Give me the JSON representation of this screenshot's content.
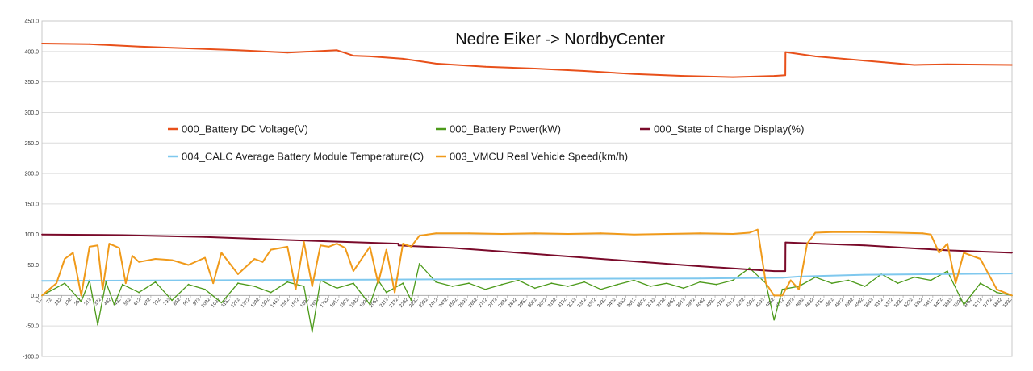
{
  "chart_data": {
    "type": "line",
    "title": "Nedre Eiker -> NordbyCenter",
    "xlabel": "",
    "ylabel": "",
    "ylim": [
      -100,
      450
    ],
    "y_ticks": [
      "-100.0",
      "-50.0",
      "0.0",
      "50.0",
      "100.0",
      "150.0",
      "200.0",
      "250.0",
      "300.0",
      "350.0",
      "400.0",
      "450.0"
    ],
    "x_range": [
      12,
      5892
    ],
    "x_ticks": [
      "12",
      "72",
      "132",
      "192",
      "252",
      "312",
      "372",
      "432",
      "492",
      "552",
      "612",
      "672",
      "732",
      "792",
      "852",
      "912",
      "972",
      "1032",
      "1092",
      "1152",
      "1212",
      "1272",
      "1332",
      "1392",
      "1452",
      "1512",
      "1572",
      "1632",
      "1692",
      "1752",
      "1812",
      "1872",
      "1932",
      "1992",
      "2052",
      "2112",
      "2172",
      "2232",
      "2292",
      "2352",
      "2412",
      "2472",
      "2532",
      "2592",
      "2652",
      "2712",
      "2772",
      "2832",
      "2892",
      "2952",
      "3012",
      "3072",
      "3132",
      "3192",
      "3252",
      "3312",
      "3372",
      "3432",
      "3492",
      "3552",
      "3612",
      "3672",
      "3732",
      "3792",
      "3852",
      "3912",
      "3972",
      "4032",
      "4092",
      "4152",
      "4212",
      "4272",
      "4332",
      "4392",
      "4452",
      "4512",
      "4572",
      "4632",
      "4692",
      "4752",
      "4812",
      "4872",
      "4932",
      "4992",
      "5052",
      "5112",
      "5172",
      "5232",
      "5292",
      "5352",
      "5412",
      "5472",
      "5532",
      "5592",
      "5652",
      "5712",
      "5772",
      "5832",
      "5892"
    ],
    "grid": "horizontal",
    "legend_position": "center",
    "series": [
      {
        "name": "000_Battery DC Voltage(V)",
        "color": "#e8501a",
        "x": [
          12,
          300,
          600,
          900,
          1200,
          1500,
          1800,
          1900,
          2000,
          2200,
          2400,
          2700,
          3000,
          3300,
          3600,
          3900,
          4200,
          4450,
          4518,
          4519,
          4700,
          5000,
          5300,
          5500,
          5892
        ],
        "y": [
          413,
          412,
          408,
          405,
          402,
          398,
          402,
          393,
          392,
          388,
          380,
          375,
          372,
          368,
          363,
          360,
          358,
          360,
          361,
          399,
          392,
          385,
          378,
          379,
          378
        ]
      },
      {
        "name": "000_Battery Power(kW)",
        "color": "#4c9a1a",
        "x": [
          12,
          150,
          250,
          300,
          350,
          400,
          450,
          500,
          600,
          700,
          800,
          900,
          1000,
          1100,
          1200,
          1300,
          1400,
          1500,
          1600,
          1650,
          1700,
          1800,
          1900,
          2000,
          2050,
          2100,
          2200,
          2250,
          2300,
          2400,
          2500,
          2600,
          2700,
          2800,
          2900,
          3000,
          3100,
          3200,
          3300,
          3400,
          3500,
          3600,
          3700,
          3800,
          3900,
          4000,
          4100,
          4200,
          4300,
          4400,
          4450,
          4500,
          4600,
          4700,
          4800,
          4900,
          5000,
          5100,
          5200,
          5300,
          5400,
          5500,
          5600,
          5700,
          5800,
          5892
        ],
        "y": [
          0,
          20,
          -10,
          25,
          -48,
          22,
          -15,
          18,
          5,
          22,
          -8,
          18,
          10,
          -12,
          20,
          15,
          5,
          22,
          15,
          -60,
          25,
          12,
          20,
          -15,
          25,
          5,
          20,
          -8,
          52,
          22,
          15,
          20,
          10,
          18,
          25,
          12,
          20,
          15,
          22,
          10,
          18,
          25,
          15,
          20,
          12,
          22,
          18,
          25,
          45,
          20,
          -40,
          10,
          15,
          30,
          20,
          25,
          15,
          35,
          20,
          30,
          25,
          40,
          -15,
          20,
          5,
          0
        ]
      },
      {
        "name": "000_State of Charge Display(%)",
        "color": "#7a0a2a",
        "x": [
          12,
          500,
          1000,
          1500,
          2172,
          2173,
          2500,
          3000,
          3500,
          4000,
          4450,
          4518,
          4519,
          5000,
          5500,
          5892
        ],
        "y": [
          100,
          99,
          96,
          91,
          85,
          82,
          78,
          68,
          58,
          48,
          40,
          40,
          87,
          82,
          74,
          70
        ]
      },
      {
        "name": "004_CALC Average Battery Module Temperature(C)",
        "color": "#7fc8ee",
        "x": [
          12,
          1000,
          2000,
          3000,
          4000,
          4500,
          4600,
          5000,
          5892
        ],
        "y": [
          24,
          25,
          26,
          27,
          28,
          29,
          31,
          34,
          36
        ]
      },
      {
        "name": "003_VMCU Real Vehicle Speed(km/h)",
        "color": "#f09a1a",
        "x": [
          12,
          100,
          150,
          200,
          250,
          300,
          350,
          380,
          420,
          480,
          520,
          560,
          600,
          700,
          800,
          900,
          1000,
          1050,
          1100,
          1200,
          1300,
          1350,
          1400,
          1500,
          1550,
          1600,
          1650,
          1700,
          1750,
          1800,
          1850,
          1900,
          2000,
          2050,
          2100,
          2150,
          2200,
          2250,
          2300,
          2350,
          2400,
          2600,
          2800,
          3000,
          3200,
          3400,
          3600,
          3800,
          4000,
          4200,
          4300,
          4350,
          4400,
          4450,
          4500,
          4550,
          4600,
          4650,
          4700,
          4800,
          5000,
          5200,
          5350,
          5400,
          5450,
          5500,
          5550,
          5600,
          5700,
          5800,
          5892
        ],
        "y": [
          0,
          20,
          60,
          70,
          0,
          80,
          82,
          10,
          85,
          78,
          20,
          65,
          55,
          60,
          58,
          50,
          62,
          20,
          70,
          35,
          60,
          55,
          75,
          80,
          10,
          88,
          15,
          82,
          80,
          85,
          78,
          40,
          80,
          20,
          75,
          5,
          85,
          80,
          98,
          100,
          102,
          102,
          101,
          102,
          101,
          102,
          100,
          101,
          102,
          101,
          103,
          108,
          20,
          0,
          0,
          25,
          10,
          85,
          103,
          104,
          104,
          103,
          102,
          100,
          70,
          85,
          20,
          70,
          60,
          10,
          0
        ]
      }
    ]
  }
}
